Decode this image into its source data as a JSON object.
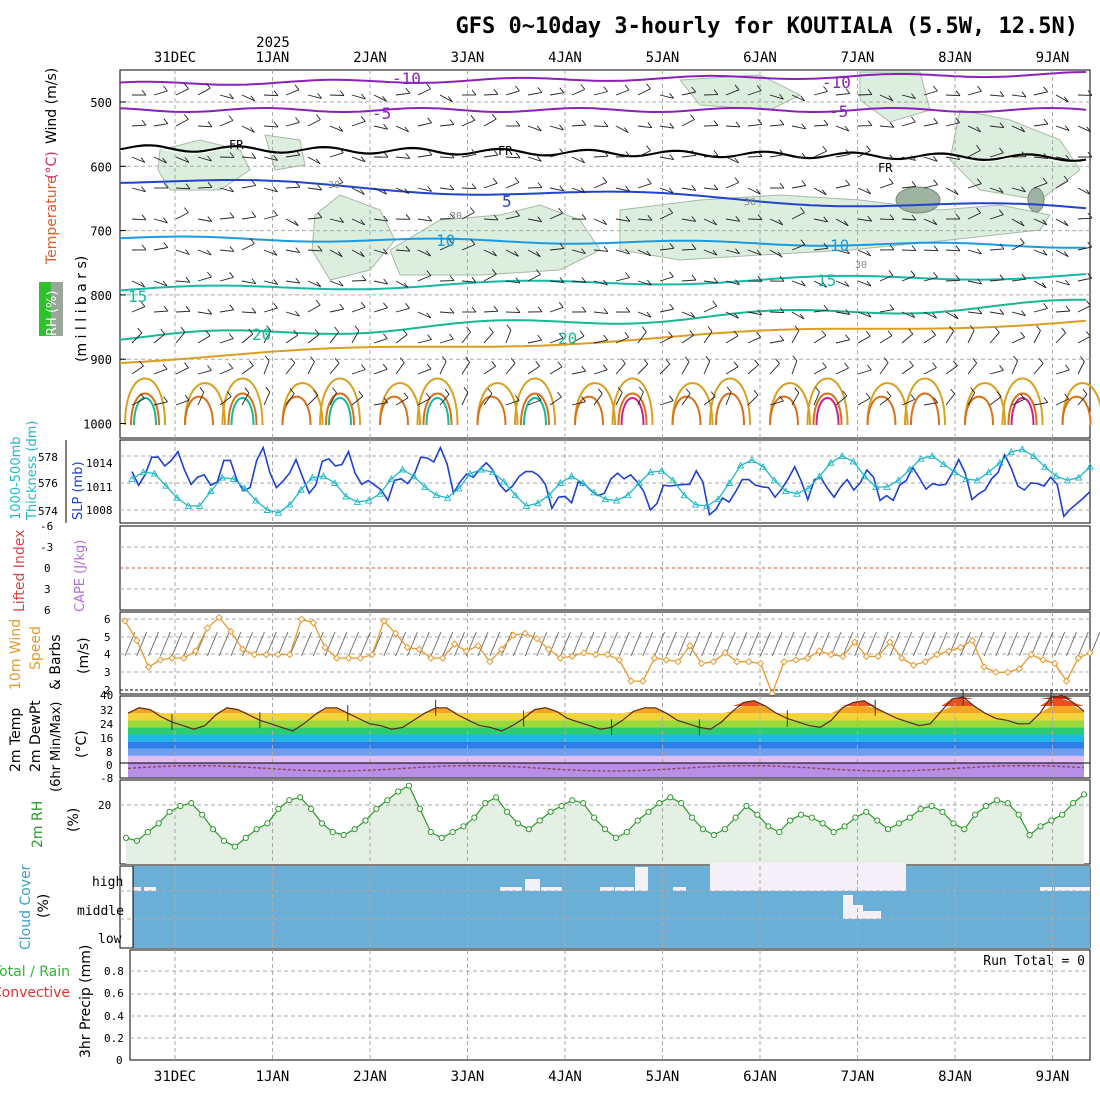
{
  "header": {
    "title": "GFS 0~10day 3-hourly for KOUTIALA (5.5W, 12.5N)",
    "year_label": "2025"
  },
  "date_labels": [
    "31DEC",
    "1JAN",
    "2JAN",
    "3JAN",
    "4JAN",
    "5JAN",
    "6JAN",
    "7JAN",
    "8JAN",
    "9JAN"
  ],
  "colors": {
    "grid": "#aaaaaa",
    "frame": "#000000",
    "temp_minus10": "#8a22b8",
    "temp_fr": "#000000",
    "temp_5": "#2244cc",
    "temp_10": "#1a9ae0",
    "temp_15": "#16b8a8",
    "temp_20": "#18b894",
    "temp_25": "#d9a020",
    "temp_30": "#d87018",
    "temp_35": "#d0208a",
    "rh_fill": "#dceedd",
    "cloud_sky": "#6baed6",
    "cloud": "#f5eff7",
    "thickness": "#22b8c8",
    "slp": "#1f3fd0",
    "wind10m": "#e8992e",
    "rh2m_line": "#2e9a2e",
    "rh2m_fill": "#e3f0e3",
    "lifted_zero": "#dd4444"
  },
  "panels": {
    "upper_air": {
      "labels": {
        "rh": "RH (%)",
        "temperature": "Temperature",
        "temp_unit": "(°C)",
        "wind": "Wind (m/s)",
        "units": "(m i l l i b a r s)"
      },
      "pressure_ticks": [
        500,
        600,
        700,
        800,
        900,
        1000
      ],
      "isotherm_labels": [
        "-10",
        "-5",
        "FR",
        "5",
        "10",
        "15",
        "20",
        "30"
      ]
    },
    "thickness_slp": {
      "labels": {
        "thickness": "1000-500mb",
        "thickness2": "Thickness (dm)",
        "slp": "SLP (mb)"
      },
      "thickness_ticks": [
        "574",
        "576",
        "578"
      ],
      "slp_ticks": [
        "1008",
        "1011",
        "1014"
      ]
    },
    "stability": {
      "labels": {
        "lifted": "Lifted Index",
        "cape": "CAPE (J/kg)"
      },
      "ticks": [
        "-6",
        "-3",
        "0",
        "3",
        "6"
      ]
    },
    "wind10m": {
      "labels": {
        "title": "10m Wind",
        "speed": "Speed",
        "barbs": "& Barbs",
        "unit": "(m/s)"
      },
      "ticks": [
        "2",
        "3",
        "4",
        "5",
        "6"
      ]
    },
    "temp2m": {
      "labels": {
        "temp": "2m Temp",
        "dewpt": "2m DewPt",
        "minmax": "(6hr Min/Max)",
        "unit": "(°C)"
      },
      "ticks": [
        "40",
        "32",
        "24",
        "16",
        "8",
        "0",
        "-8"
      ]
    },
    "rh2m": {
      "labels": {
        "title": "2m RH",
        "unit": "(%)"
      },
      "ticks": [
        "20"
      ]
    },
    "cloud": {
      "labels": {
        "title": "Cloud Cover",
        "unit": "(%)"
      },
      "levels": [
        "high",
        "middle",
        "low"
      ]
    },
    "precip": {
      "labels": {
        "total": "Total / Rain",
        "convective": "Convective",
        "title": "3hr Precip (mm)"
      },
      "ticks": [
        "0",
        "0.2",
        "0.4",
        "0.6",
        "0.8"
      ],
      "run_total": "Run Total = 0"
    }
  },
  "chart_data": [
    {
      "type": "line",
      "title": "SLP (mb)",
      "x_unit": "3-hourly steps from 30DEC 15Z",
      "series": [
        {
          "name": "SLP",
          "values": [
            1012.8,
            1011.1,
            1012.4,
            1014.6,
            1014.6,
            1013.5,
            1014.2,
            1015.3,
            1013.0,
            1011.2,
            1012.1,
            1012.4,
            1011.1,
            1011.5,
            1014.2,
            1014.2,
            1011.7,
            1010.4,
            1010.8,
            1014.2,
            1015.8,
            1012.7,
            1010.8,
            1011.6,
            1012.6,
            1014.3,
            1012.1,
            1010.1,
            1011.1,
            1014.1,
            1014.4,
            1013.5,
            1013.7,
            1015.3,
            1012.6,
            1011.2,
            1011.7,
            1011.1,
            1010.5,
            1009.2,
            1011.7,
            1011.9,
            1011.3,
            1012.4,
            1014.6,
            1014.5,
            1014.0,
            1015.8,
            1013.8,
            1010.1,
            1011.5,
            1012.5,
            1012.1,
            1013.1,
            1013.9,
            1013.0,
            1011.2,
            1010.3,
            1011.0,
            1012.2,
            1012.8,
            1012.8,
            1012.3,
            1011.2,
            1008.2,
            1009.6,
            1009.7,
            1008.9,
            1011.5,
            1011.2,
            1010.4,
            1009.8,
            1010.1,
            1011.9,
            1012.6,
            1011.9,
            1012.4,
            1011.5,
            1010.3,
            1008.0,
            1008.8,
            1011.1,
            1011.0,
            1011.1,
            1011.2,
            1011.2,
            1012.9,
            1011.5,
            1007.4,
            1008.1,
            1009.5,
            1009.0,
            1010.3,
            1011.8,
            1011.8,
            1011.1,
            1010.9,
            1010.8,
            1009.6,
            1010.6,
            1011.9,
            1013.4,
            1011.6,
            1009.3,
            1011.8,
            1012.0,
            1010.7,
            1009.6,
            1010.9,
            1011.8,
            1010.5,
            1011.4,
            1013.0,
            1012.1,
            1009.2,
            1009.8,
            1009.2,
            1011.1,
            1011.7,
            1013.3,
            1012.0,
            1010.6,
            1011.3,
            1011.1,
            1011.2,
            1012.6,
            1014.3,
            1012.6,
            1009.3,
            1010.0,
            1010.5,
            1011.9,
            1012.7,
            1014.9,
            1013.2,
            1011.0,
            1010.5,
            1011.4,
            1011.3,
            1011.0,
            1012.1,
            1011.2,
            1007.2,
            1008.1,
            1008.8,
            1009.5,
            1010.3
          ]
        }
      ],
      "ylim": [
        1006,
        1016
      ]
    },
    {
      "type": "line",
      "title": "1000-500mb Thickness (dm)",
      "x_unit": "3-hourly steps from 30DEC 15Z",
      "series": [
        {
          "name": "Thickness",
          "values": [
            576.3,
            576.8,
            576.7,
            575.8,
            574.9,
            574.3,
            574.3,
            575.4,
            576.4,
            576.3,
            575.6,
            574.7,
            574.0,
            573.8,
            574.4,
            575.5,
            576.4,
            576.5,
            576.0,
            575.0,
            574.6,
            574.7,
            575.2,
            576.3,
            577.0,
            576.5,
            575.7,
            575.1,
            574.9,
            575.6,
            576.7,
            577.0,
            576.8,
            576.1,
            575.1,
            574.3,
            574.5,
            575.1,
            576.0,
            576.5,
            576.0,
            575.3,
            574.8,
            574.7,
            575.1,
            576.0,
            576.8,
            576.9,
            576.2,
            575.1,
            574.4,
            574.3,
            574.8,
            576.0,
            577.3,
            577.7,
            577.2,
            576.2,
            575.4,
            575.2,
            575.6,
            576.5,
            577.5,
            578.0,
            577.6,
            576.5,
            575.7,
            575.7,
            576.2,
            577.0,
            577.8,
            578.0,
            577.4,
            576.8,
            576.3,
            576.2,
            576.8,
            577.5,
            578.3,
            578.5,
            578.0,
            577.2,
            576.5,
            576.2,
            576.4,
            577.2
          ]
        }
      ]
    },
    {
      "type": "line",
      "title": "10m Wind Speed (m/s)",
      "x_unit": "3-hourly steps from 30DEC 15Z",
      "series": [
        {
          "name": "Wind speed",
          "values": [
            5.9,
            4.8,
            3.3,
            3.7,
            3.8,
            3.8,
            4.2,
            5.5,
            6.1,
            5.3,
            4.3,
            4.0,
            4.0,
            4.0,
            4.0,
            6.0,
            5.8,
            4.4,
            3.8,
            3.8,
            3.8,
            4.0,
            5.9,
            5.2,
            4.4,
            4.3,
            3.8,
            3.8,
            4.6,
            4.2,
            4.5,
            3.6,
            4.3,
            5.1,
            5.2,
            4.9,
            4.3,
            3.8,
            3.9,
            4.1,
            4.0,
            4.0,
            3.7,
            2.5,
            2.5,
            3.8,
            3.7,
            3.6,
            4.5,
            3.5,
            3.6,
            4.1,
            3.6,
            3.6,
            3.5,
            1.8,
            3.6,
            3.7,
            3.8,
            4.2,
            4.0,
            3.9,
            4.7,
            3.9,
            3.9,
            4.7,
            3.8,
            3.4,
            3.6,
            4.0,
            4.2,
            4.4,
            4.8,
            3.3,
            3.0,
            3.0,
            3.2,
            4.0,
            3.7,
            3.5,
            2.5,
            3.8,
            4.1
          ]
        }
      ],
      "ylim": [
        2,
        6
      ]
    },
    {
      "type": "area",
      "title": "2m Temp (°C)",
      "x_unit": "3-hourly steps from 30DEC 15Z",
      "series": [
        {
          "name": "2m Temp",
          "values": [
            28,
            31,
            30,
            26,
            23,
            21,
            19,
            21,
            27,
            31,
            30,
            27,
            24,
            22,
            20,
            18,
            22,
            27,
            31,
            31,
            28,
            25,
            22,
            21,
            19,
            20,
            24,
            28,
            31,
            31,
            27,
            24,
            21,
            20,
            18,
            21,
            25,
            30,
            31,
            29,
            25,
            23,
            21,
            19,
            20,
            24,
            29,
            31,
            31,
            28,
            24,
            22,
            20,
            19,
            23,
            29,
            34,
            35,
            32,
            28,
            25,
            23,
            21,
            20,
            24,
            31,
            34,
            35,
            31,
            28,
            25,
            23,
            21,
            22,
            29,
            36,
            37,
            32,
            28,
            25,
            24,
            22,
            22,
            28,
            37,
            38,
            34,
            29
          ]
        }
      ],
      "ylim": [
        -8,
        40
      ]
    },
    {
      "type": "area",
      "title": "2m RH (%)",
      "x_unit": "3-hourly steps from 30DEC 15Z",
      "series": [
        {
          "name": "2m RH",
          "values": [
            9,
            8,
            11,
            14,
            18,
            20,
            21,
            17,
            12,
            8,
            6,
            9,
            12,
            14,
            19,
            22,
            23,
            19,
            14,
            11,
            10,
            12,
            15,
            19,
            22,
            25,
            27,
            19,
            11,
            9,
            11,
            13,
            16,
            21,
            23,
            18,
            14,
            12,
            15,
            18,
            20,
            22,
            21,
            16,
            12,
            9,
            11,
            15,
            18,
            21,
            23,
            21,
            16,
            12,
            10,
            12,
            16,
            20,
            17,
            13,
            11,
            15,
            17,
            16,
            14,
            11,
            13,
            16,
            18,
            15,
            12,
            14,
            16,
            19,
            20,
            18,
            14,
            12,
            17,
            20,
            22,
            21,
            17,
            10,
            13,
            15,
            17,
            21,
            24
          ]
        }
      ],
      "ylim": [
        0,
        30
      ]
    },
    {
      "type": "bar",
      "title": "3hr Precip (mm)",
      "series": [
        {
          "name": "Total / Rain",
          "values": [
            0
          ]
        }
      ],
      "ylim": [
        0,
        0.9
      ]
    }
  ]
}
